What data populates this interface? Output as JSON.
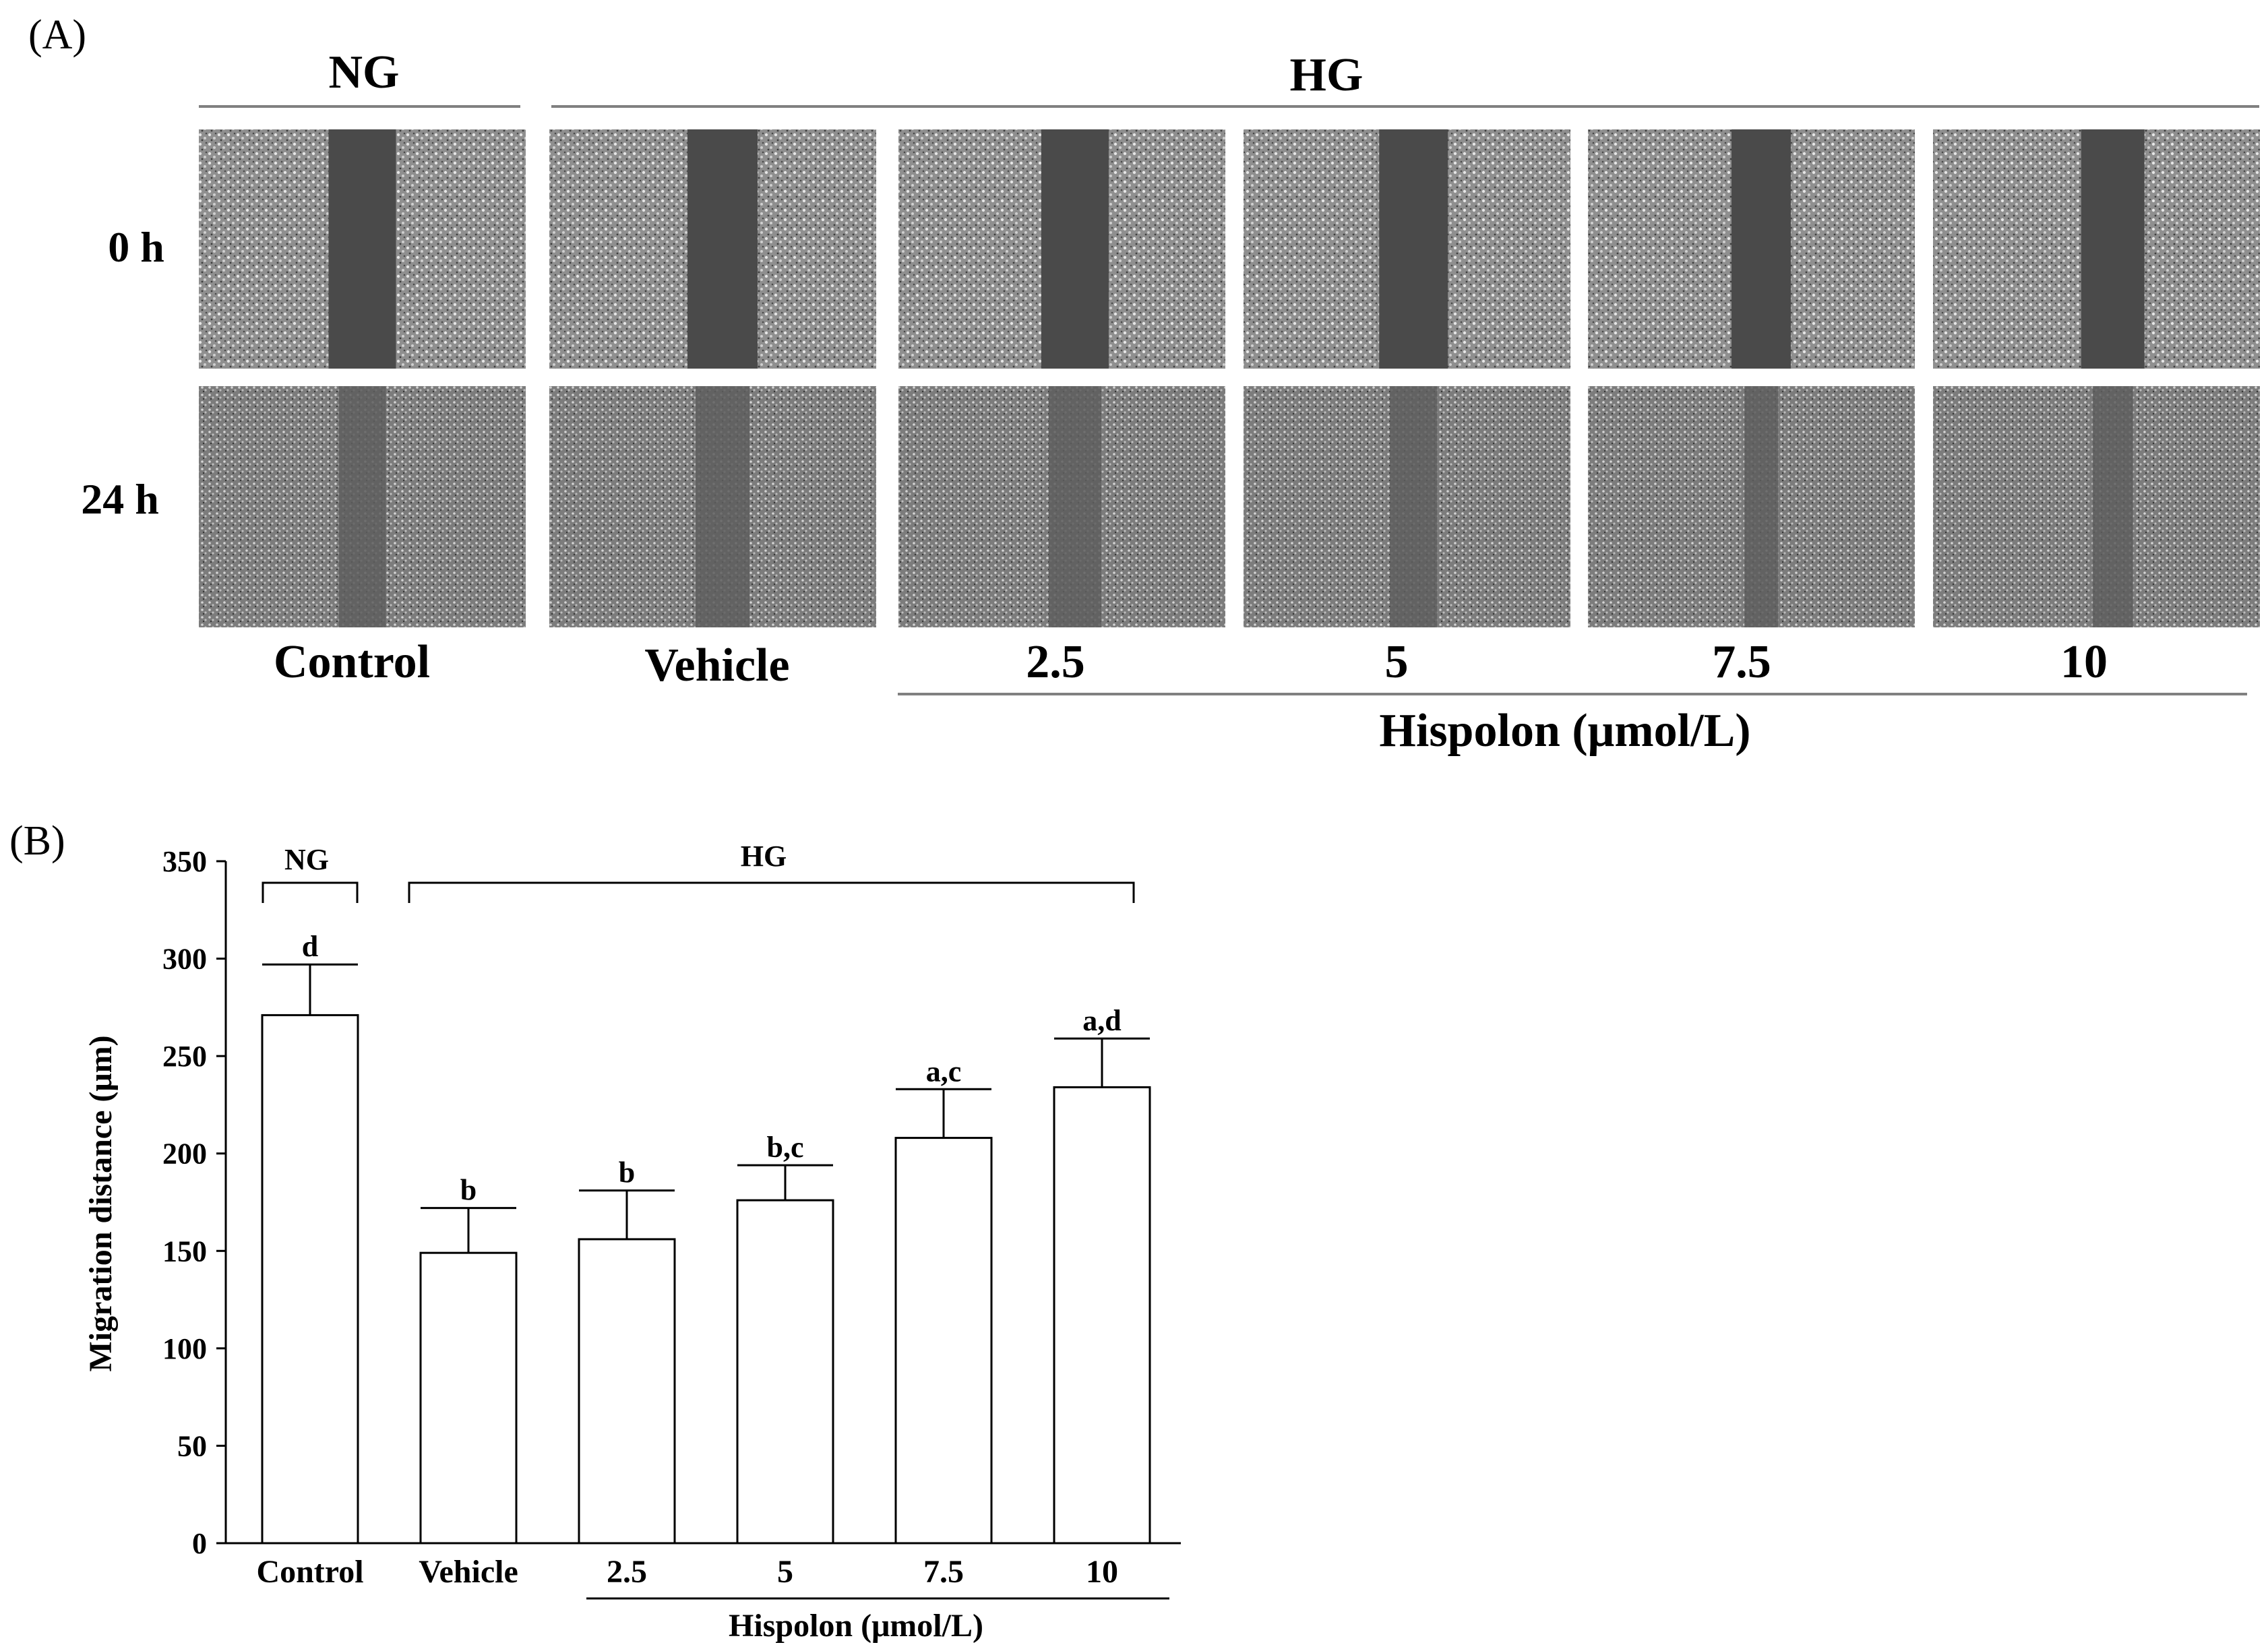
{
  "panel_a": {
    "label": "(A)",
    "group_left": "NG",
    "group_right": "HG",
    "row_labels": [
      "0 h",
      "24 h"
    ],
    "columns": [
      "Control",
      "Vehicle",
      "2.5",
      "5",
      "7.5",
      "10"
    ],
    "treatment_label": "Hispolon (μmol/L)"
  },
  "panel_b": {
    "label": "(B)",
    "group_left": "NG",
    "group_right": "HG",
    "treatment_label": "Hispolon (μmol/L)"
  },
  "chart_data": {
    "type": "bar",
    "categories": [
      "Control",
      "Vehicle",
      "2.5",
      "5",
      "7.5",
      "10"
    ],
    "values": [
      271,
      149,
      156,
      176,
      208,
      234
    ],
    "errors": [
      26,
      23,
      25,
      18,
      25,
      25
    ],
    "significance": [
      "d",
      "b",
      "b",
      "b,c",
      "a,c",
      "a,d"
    ],
    "xlabel": "",
    "ylabel": "Migration distance (μm)",
    "ylim": [
      0,
      350
    ],
    "yticks": [
      0,
      50,
      100,
      150,
      200,
      250,
      300,
      350
    ],
    "grid": false,
    "bar_fill": "#ffffff",
    "bar_stroke": "#000000"
  }
}
